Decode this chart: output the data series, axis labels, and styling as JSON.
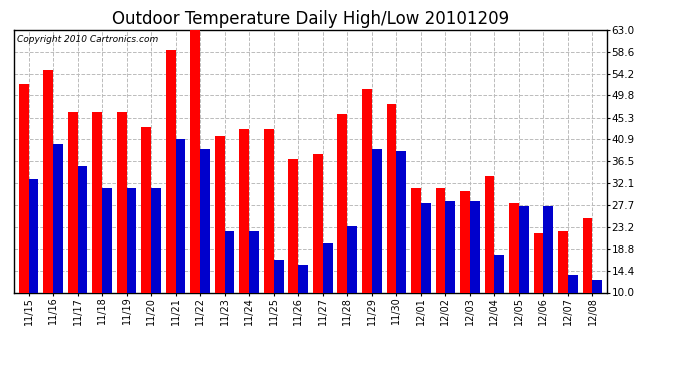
{
  "title": "Outdoor Temperature Daily High/Low 20101209",
  "copyright": "Copyright 2010 Cartronics.com",
  "dates": [
    "11/15",
    "11/16",
    "11/17",
    "11/18",
    "11/19",
    "11/20",
    "11/21",
    "11/22",
    "11/23",
    "11/24",
    "11/25",
    "11/26",
    "11/27",
    "11/28",
    "11/29",
    "11/30",
    "12/01",
    "12/02",
    "12/03",
    "12/04",
    "12/05",
    "12/06",
    "12/07",
    "12/08"
  ],
  "highs": [
    52.0,
    55.0,
    46.5,
    46.5,
    46.5,
    43.5,
    59.0,
    63.5,
    41.5,
    43.0,
    43.0,
    37.0,
    38.0,
    46.0,
    51.0,
    48.0,
    31.0,
    31.0,
    30.5,
    33.5,
    28.0,
    22.0,
    22.5,
    25.0
  ],
  "lows": [
    33.0,
    40.0,
    35.5,
    31.0,
    31.0,
    31.0,
    41.0,
    39.0,
    22.5,
    22.5,
    16.5,
    15.5,
    20.0,
    23.5,
    39.0,
    38.5,
    28.0,
    28.5,
    28.5,
    17.5,
    27.5,
    27.5,
    13.5,
    12.5
  ],
  "high_color": "#ff0000",
  "low_color": "#0000cc",
  "bg_color": "#ffffff",
  "yticks": [
    10.0,
    14.4,
    18.8,
    23.2,
    27.7,
    32.1,
    36.5,
    40.9,
    45.3,
    49.8,
    54.2,
    58.6,
    63.0
  ],
  "ymin": 10.0,
  "ymax": 63.0,
  "grid_color": "#bbbbbb",
  "title_fontsize": 12,
  "bar_bottom": 10.0
}
